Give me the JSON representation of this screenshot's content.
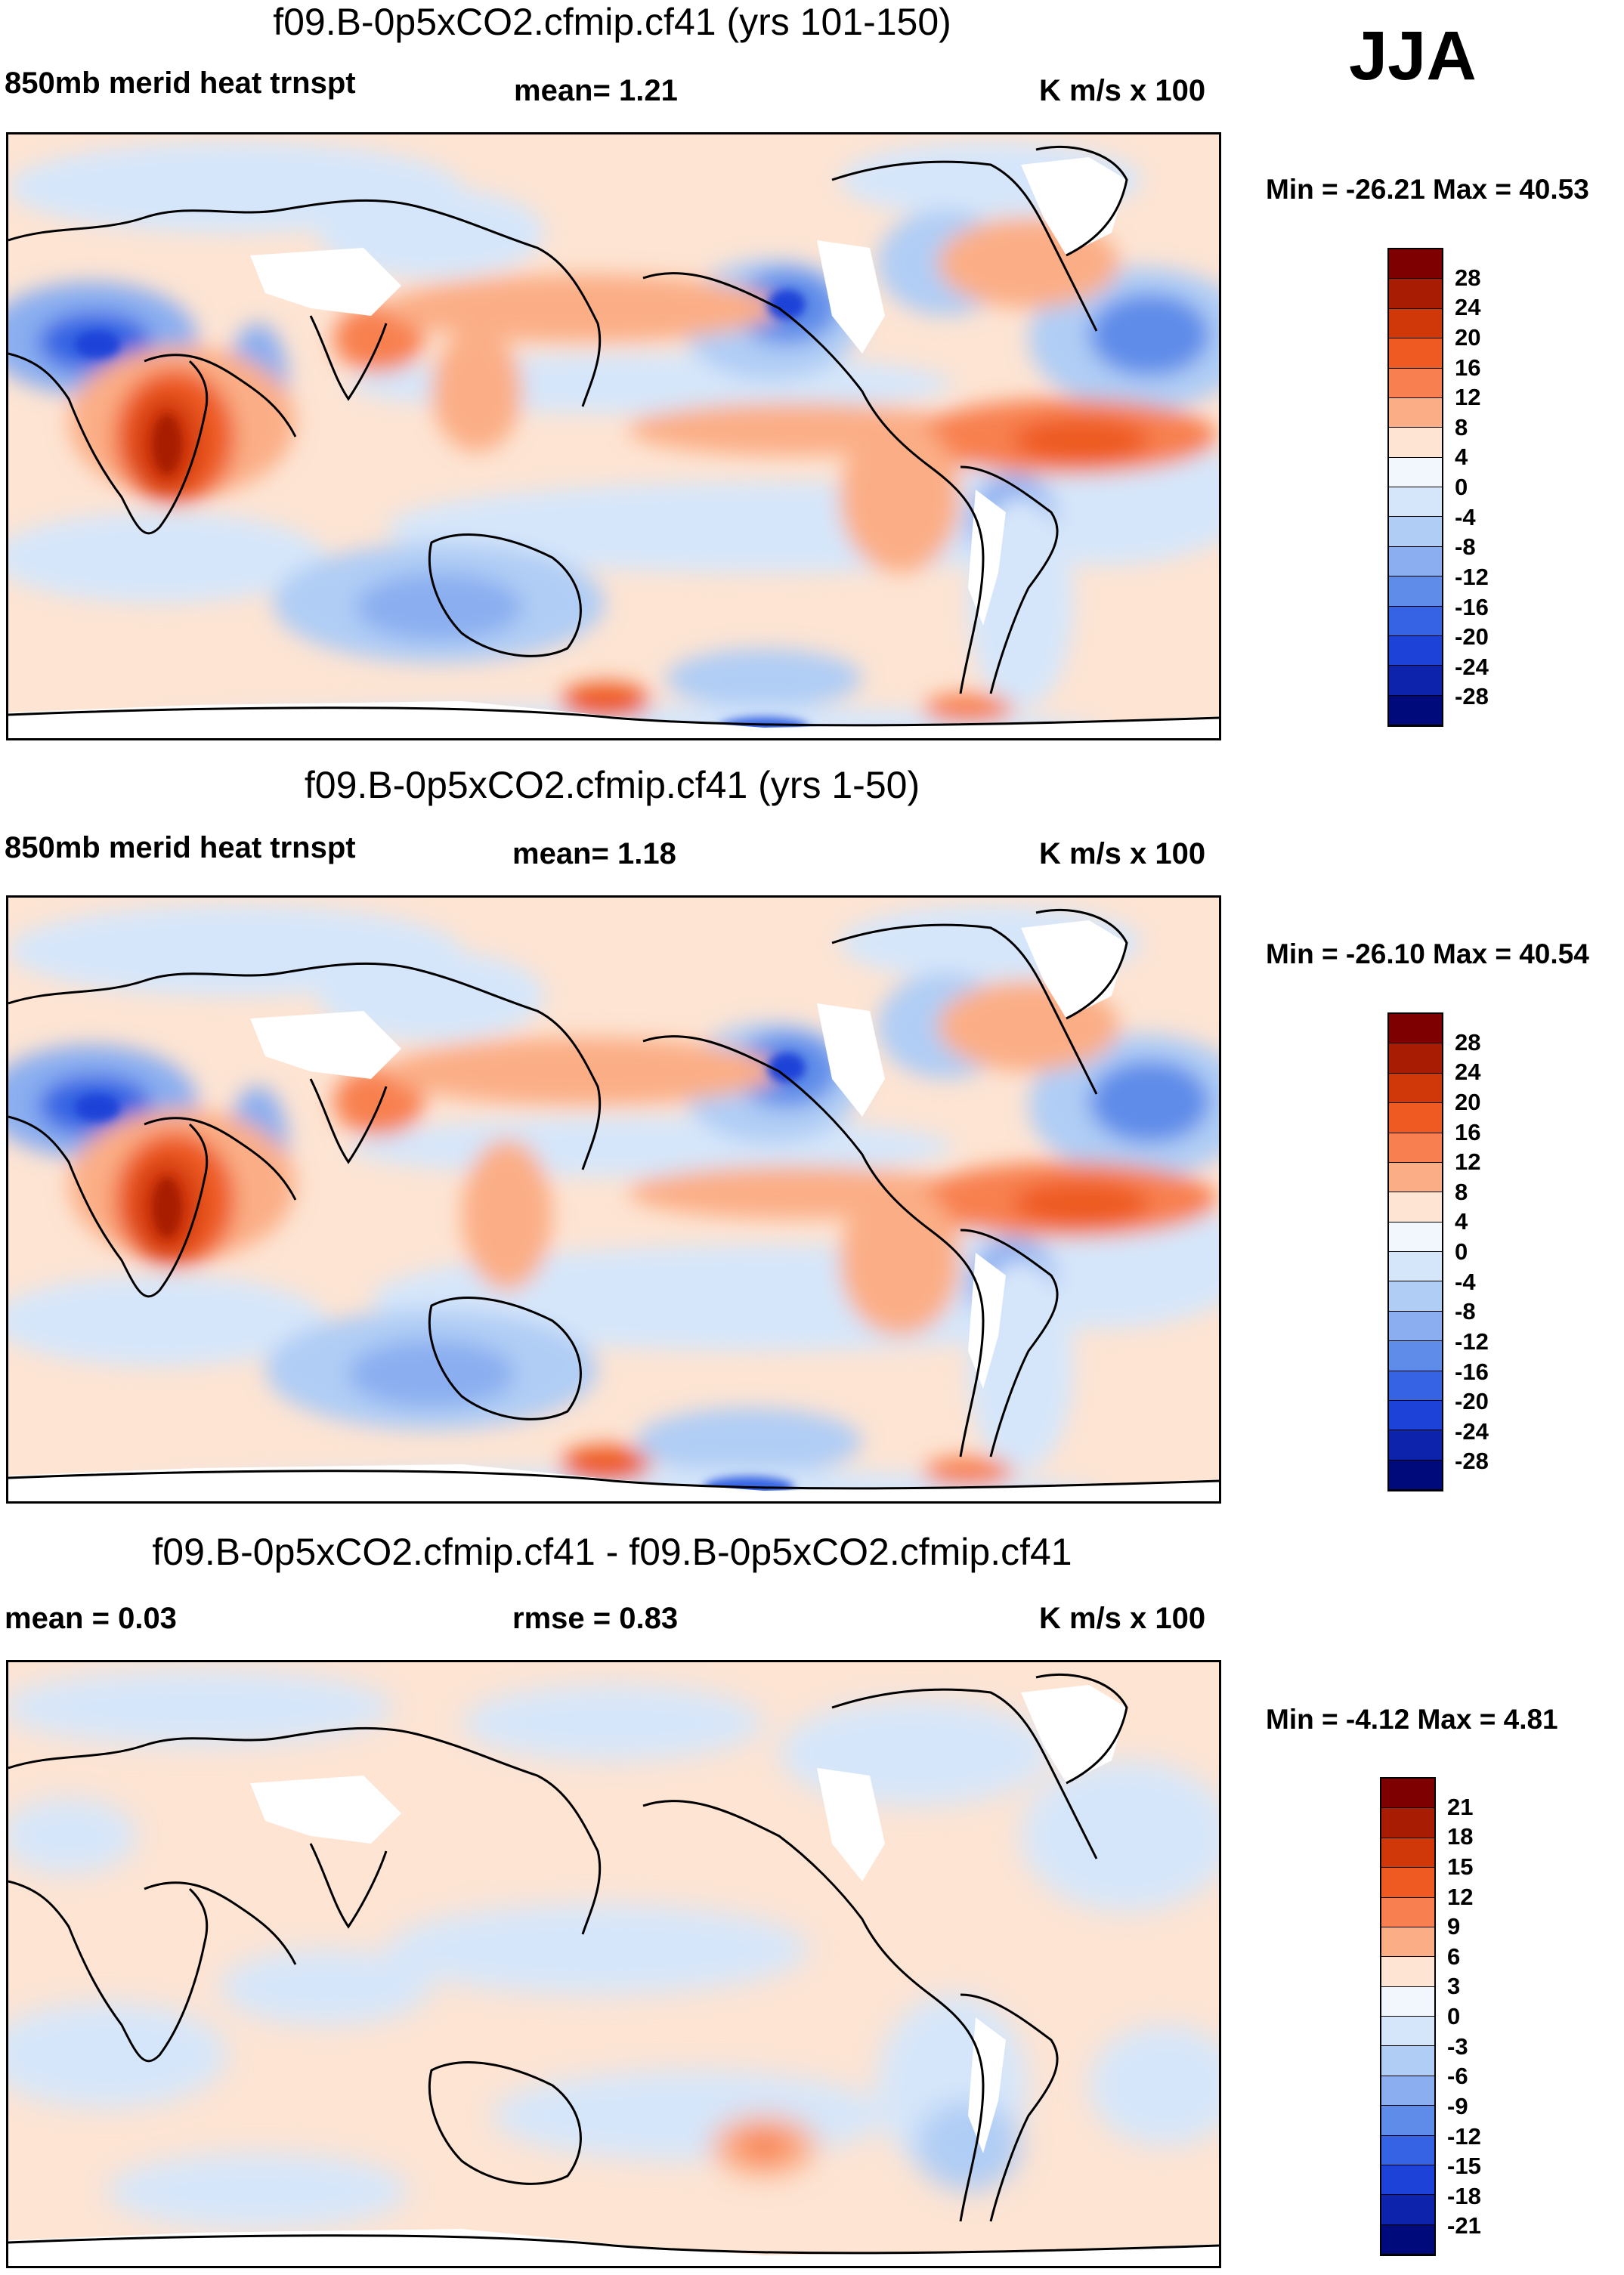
{
  "season": "JJA",
  "colors": {
    "cb_top": [
      "#7f0000",
      "#a81c04",
      "#d0380a",
      "#ee5a22",
      "#f88050",
      "#fbae86",
      "#fde4d3",
      "#f2f7fd"
    ],
    "cb_bottom": [
      "#d6e6fa",
      "#b0cdf5",
      "#8aaef0",
      "#5f8ce9",
      "#3563e3",
      "#1c42d8",
      "#0e23ac",
      "#000a7a"
    ],
    "positive_light": "#fde4d3",
    "negative_light": "#d6e6fa",
    "land_mask": "#ffffff",
    "coast": "#000000"
  },
  "panels": [
    {
      "id": "panel1",
      "title": "f09.B-0p5xCO2.cfmip.cf41 (yrs 101-150)",
      "left_label": "850mb merid heat trnspt",
      "mid_label": "mean=   1.21",
      "units": "K m/s x 100",
      "minmax": "Min = -26.21 Max =  40.53",
      "colorbar": [
        "28",
        "24",
        "20",
        "16",
        "12",
        "8",
        "4",
        "0",
        "-4",
        "-8",
        "-12",
        "-16",
        "-20",
        "-24",
        "-28"
      ]
    },
    {
      "id": "panel2",
      "title": "f09.B-0p5xCO2.cfmip.cf41 (yrs 1-50)",
      "left_label": "850mb merid heat trnspt",
      "mid_label": "mean=   1.18",
      "units": "K m/s x 100",
      "minmax": "Min = -26.10 Max =  40.54",
      "colorbar": [
        "28",
        "24",
        "20",
        "16",
        "12",
        "8",
        "4",
        "0",
        "-4",
        "-8",
        "-12",
        "-16",
        "-20",
        "-24",
        "-28"
      ]
    },
    {
      "id": "panel3",
      "title": "f09.B-0p5xCO2.cfmip.cf41 - f09.B-0p5xCO2.cfmip.cf41",
      "left_label": "mean =   0.03",
      "mid_label": "rmse =   0.83",
      "units": "K m/s x 100",
      "minmax": "Min =  -4.12 Max =   4.81",
      "colorbar": [
        "21",
        "18",
        "15",
        "12",
        "9",
        "6",
        "3",
        "0",
        "-3",
        "-6",
        "-9",
        "-12",
        "-15",
        "-18",
        "-21"
      ]
    }
  ]
}
